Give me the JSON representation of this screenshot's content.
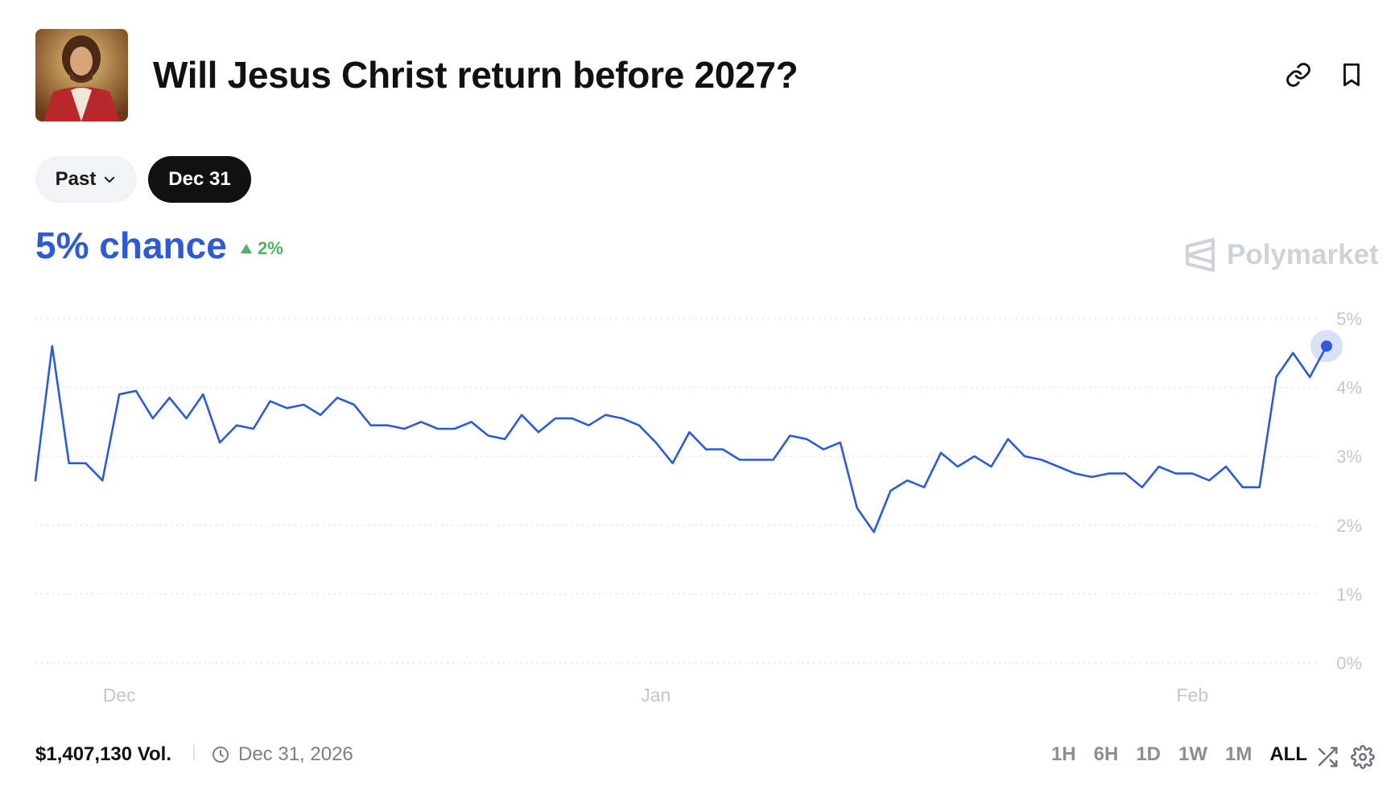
{
  "header": {
    "title": "Will Jesus Christ return before 2027?",
    "thumbnail_icon": "jesus-portrait-icon",
    "actions": [
      {
        "icon": "link-icon"
      },
      {
        "icon": "bookmark-icon"
      }
    ]
  },
  "date_tabs": {
    "past_label": "Past",
    "active_label": "Dec 31"
  },
  "odds": {
    "chance_label": "5% chance",
    "change_label": "2%",
    "change_color": "#4fb366",
    "accent_color": "#2d5bd6"
  },
  "brand": {
    "name": "Polymarket"
  },
  "chart_data": {
    "type": "line",
    "x": [
      0,
      1,
      2,
      3,
      4,
      5,
      6,
      7,
      8,
      9,
      10,
      11,
      12,
      13,
      14,
      15,
      16,
      17,
      18,
      19,
      20,
      21,
      22,
      23,
      24,
      25,
      26,
      27,
      28,
      29,
      30,
      31,
      32,
      33,
      34,
      35,
      36,
      37,
      38,
      39,
      40,
      41,
      42,
      43,
      44,
      45,
      46,
      47,
      48,
      49,
      50,
      51,
      52,
      53,
      54,
      55,
      56,
      57,
      58,
      59,
      60,
      61,
      62,
      63,
      64,
      65,
      66,
      67,
      68,
      69,
      70,
      71,
      72,
      73,
      74,
      75,
      76,
      77
    ],
    "values": [
      2.65,
      4.6,
      2.9,
      2.9,
      2.65,
      3.9,
      3.95,
      3.55,
      3.85,
      3.55,
      3.9,
      3.2,
      3.45,
      3.4,
      3.8,
      3.7,
      3.75,
      3.6,
      3.85,
      3.75,
      3.45,
      3.45,
      3.4,
      3.5,
      3.4,
      3.4,
      3.5,
      3.3,
      3.25,
      3.6,
      3.35,
      3.55,
      3.55,
      3.45,
      3.6,
      3.55,
      3.45,
      3.2,
      2.9,
      3.35,
      3.1,
      3.1,
      2.95,
      2.95,
      2.95,
      3.3,
      3.25,
      3.1,
      3.2,
      2.25,
      1.9,
      2.5,
      2.65,
      2.55,
      3.05,
      2.85,
      3.0,
      2.85,
      3.25,
      3.0,
      2.95,
      2.85,
      2.75,
      2.7,
      2.75,
      2.75,
      2.55,
      2.85,
      2.75,
      2.75,
      2.65,
      2.85,
      2.55,
      2.55,
      4.15,
      4.5,
      4.15,
      4.6
    ],
    "x_tick_labels": [
      {
        "x": 5,
        "label": "Dec"
      },
      {
        "x": 37,
        "label": "Jan"
      },
      {
        "x": 69,
        "label": "Feb"
      }
    ],
    "y_tick_labels": [
      "5%",
      "4%",
      "3%",
      "2%",
      "1%",
      "0%"
    ],
    "ylim": [
      0,
      5
    ],
    "grid": true,
    "series_color": "#2d5bd6",
    "current_point_index": 77
  },
  "footer": {
    "volume_label": "$1,407,130 Vol.",
    "end_date_label": "Dec 31, 2026",
    "ranges": [
      "1H",
      "6H",
      "1D",
      "1W",
      "1M",
      "ALL"
    ],
    "active_range": "ALL"
  }
}
